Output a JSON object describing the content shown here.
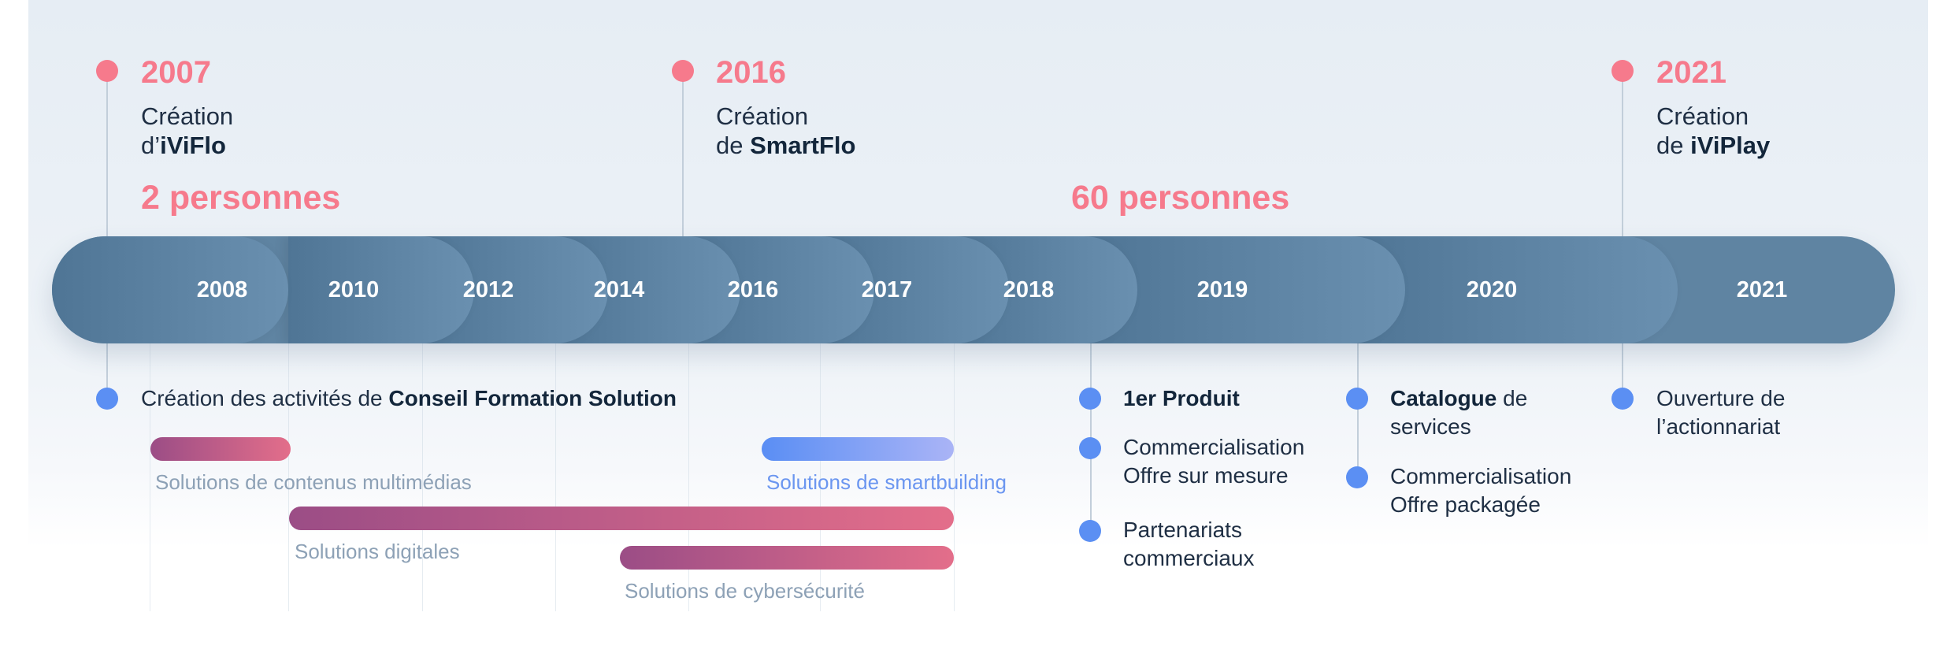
{
  "colors": {
    "accent_pink": "#f67a8c",
    "accent_blue": "#5b8ff3",
    "text_dark": "#1f2f44",
    "track": "#5f84a2"
  },
  "milestones_top": [
    {
      "year": "2007",
      "line1": "Création",
      "line2_pre": "d’",
      "line2_bold": "iViFlo"
    },
    {
      "year": "2016",
      "line1": "Création",
      "line2_pre": "de ",
      "line2_bold": "SmartFlo"
    },
    {
      "year": "2021",
      "line1": "Création",
      "line2_pre": "de ",
      "line2_bold": "iViPlay"
    }
  ],
  "headcount": [
    {
      "label": "2 personnes"
    },
    {
      "label": "60 personnes"
    }
  ],
  "timeline_years": [
    "2008",
    "2010",
    "2012",
    "2014",
    "2016",
    "2017",
    "2018",
    "2019",
    "2020",
    "2021"
  ],
  "avatar_icon": "people-icon",
  "below": {
    "founding": {
      "pre": "Création des activités de ",
      "bold": "Conseil Formation Solution"
    },
    "y2019": {
      "produit": {
        "bold": "1er Produit"
      },
      "commercialisation": {
        "line1": "Commercialisation",
        "line2": "Offre sur mesure"
      },
      "partenariats": {
        "line1": "Partenariats",
        "line2": "commerciaux"
      }
    },
    "y2020": {
      "catalogue": {
        "bold": "Catalogue",
        "post": " de",
        "line2": "services"
      },
      "commercialisation": {
        "line1": "Commercialisation",
        "line2": "Offre packagée"
      }
    },
    "y2021": {
      "line1": "Ouverture de",
      "line2": "l’actionnariat"
    }
  },
  "solutions": [
    {
      "label": "Solutions de contenus multimédias",
      "color_from": "#9b4d86",
      "color_to": "#e36e8a",
      "label_color": "#8da1b6"
    },
    {
      "label": "Solutions de smartbuilding",
      "color_from": "#5a8ef4",
      "color_to": "#aab4f6",
      "label_color": "#6b96f0"
    },
    {
      "label": "Solutions digitales",
      "color_from": "#9b4d86",
      "color_to": "#e36e8a",
      "label_color": "#8da1b6"
    },
    {
      "label": "Solutions de cybersécurité",
      "color_from": "#9b4d86",
      "color_to": "#e36e8a",
      "label_color": "#8da1b6"
    }
  ]
}
